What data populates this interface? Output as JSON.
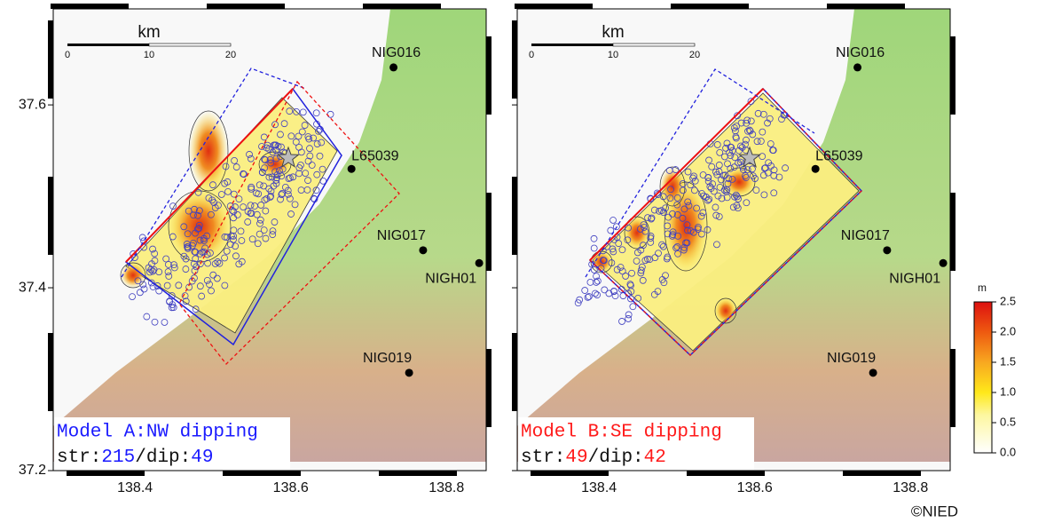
{
  "map_axes": {
    "xlim": [
      138.295,
      138.851
    ],
    "ylim": [
      37.2,
      37.705
    ],
    "xticks": [
      138.4,
      138.6,
      138.8
    ],
    "yticks": [
      37.6,
      37.4,
      37.2
    ]
  },
  "scale_bar": {
    "unit": "km",
    "ticks": [
      0,
      10,
      20
    ]
  },
  "stations": [
    {
      "name": "NIG016",
      "lon": 138.732,
      "lat": 37.641
    },
    {
      "name": "L65039",
      "lon": 138.678,
      "lat": 37.53
    },
    {
      "name": "NIG017",
      "lon": 138.77,
      "lat": 37.441
    },
    {
      "name": "NIGH01",
      "lon": 138.842,
      "lat": 37.427
    },
    {
      "name": "NIG019",
      "lon": 138.752,
      "lat": 37.307
    }
  ],
  "panels": [
    {
      "model_label": "Model A:NW dipping",
      "strike_label": "str:",
      "strike": 215,
      "dip_label": "/dip:",
      "dip": 49,
      "color": "#1a1aff"
    },
    {
      "model_label": "Model B:SE dipping",
      "strike_label": "str:",
      "strike": 49,
      "dip_label": "/dip:",
      "dip": 42,
      "color": "#ff1a1a"
    }
  ],
  "colorbar": {
    "unit": "m",
    "ticks": [
      {
        "value": 2.5,
        "label": "2.5"
      },
      {
        "value": 2.0,
        "label": "2.0"
      },
      {
        "value": 1.5,
        "label": "1.5"
      },
      {
        "value": 1.0,
        "label": "1.0"
      },
      {
        "value": 0.5,
        "label": "0.5"
      },
      {
        "value": 0.0,
        "label": "0.0"
      }
    ]
  },
  "credit": "©NIED"
}
